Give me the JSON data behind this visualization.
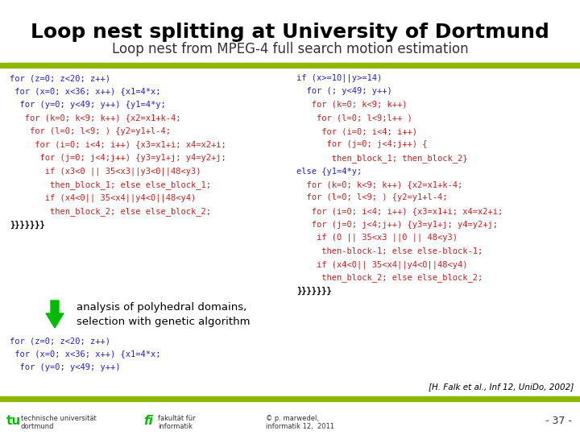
{
  "title": "Loop nest splitting at University of Dortmund",
  "subtitle": "Loop nest from MPEG-4 full search motion estimation",
  "bg_color": "#ffffff",
  "bar_color": "#8db600",
  "title_color": "#000000",
  "subtitle_color": "#333333",
  "blue": "#2222bb",
  "red": "#bb2222",
  "black": "#000000",
  "green": "#00bb00",
  "left_code_lines": [
    {
      "text": "for (z=0; z<20; z++)",
      "color": "#2222bb"
    },
    {
      "text": " for (x=0; x<36; x++) {x1=4*x;",
      "color": "#2222bb"
    },
    {
      "text": "  for (y=0; y<49; y++) {y1=4*y;",
      "color": "#2222bb"
    },
    {
      "text": "   for (k=0; k<9; k++) {x2=x1+k-4;",
      "color": "#bb2222"
    },
    {
      "text": "    for (l=0; l<9; ) {y2=y1+l-4;",
      "color": "#bb2222"
    },
    {
      "text": "     for (i=0; i<4; i++) {x3=x1+i; x4=x2+i;",
      "color": "#bb2222"
    },
    {
      "text": "      for (j=0; j<4;j++) {y3=y1+j; y4=y2+j;",
      "color": "#bb2222"
    },
    {
      "text": "       if (x3<0 || 35<x3||y3<0||48<y3)",
      "color": "#bb2222"
    },
    {
      "text": "        then_block_1; else else_block_1;",
      "color": "#bb2222"
    },
    {
      "text": "       if (x4<0|| 35<x4||y4<0||48<y4)",
      "color": "#bb2222"
    },
    {
      "text": "        then_block_2; else else_block_2;",
      "color": "#bb2222"
    },
    {
      "text": "}}}}}}}",
      "color": "#000000",
      "bold": true
    }
  ],
  "arrow_label1": "analysis of polyhedral domains,",
  "arrow_label2": "selection with genetic algorithm",
  "bottom_left_lines": [
    {
      "text": "for (z=0; z<20; z++)",
      "color": "#2222bb"
    },
    {
      "text": " for (x=0; x<36; x++) {x1=4*x;",
      "color": "#2222bb"
    },
    {
      "text": "  for (y=0; y<49; y++)",
      "color": "#2222bb"
    }
  ],
  "right_code_lines": [
    {
      "text": "if (x>=10||y>=14)",
      "color": "#2222bb"
    },
    {
      "text": "  for (; y<49; y++)",
      "color": "#2222bb"
    },
    {
      "text": "   for (k=0; k<9; k++)",
      "color": "#bb2222"
    },
    {
      "text": "    for (l=0; l<9;l++ )",
      "color": "#bb2222"
    },
    {
      "text": "     for (i=0; i<4; i++)",
      "color": "#bb2222"
    },
    {
      "text": "      for (j=0; j<4;j++) {",
      "color": "#bb2222"
    },
    {
      "text": "       then_block_1; then_block_2}",
      "color": "#bb2222"
    },
    {
      "text": "else {y1=4*y;",
      "color": "#2222bb"
    },
    {
      "text": "  for (k=0; k<9; k++) {x2=x1+k-4;",
      "color": "#bb2222"
    },
    {
      "text": "  for (l=0; l<9; ) {y2=y1+l-4;",
      "color": "#bb2222"
    },
    {
      "text": "   for (i=0; i<4; i++) {x3=x1+i; x4=x2+i;",
      "color": "#bb2222"
    },
    {
      "text": "   for (j=0; j<4;j++) {y3=y1+j; y4=y2+j;",
      "color": "#bb2222"
    },
    {
      "text": "    if (0 || 35<x3 ||0 || 48<y3)",
      "color": "#bb2222"
    },
    {
      "text": "     then-block-1; else else-block-1;",
      "color": "#bb2222"
    },
    {
      "text": "    if (x4<0|| 35<x4||y4<0||48<y4)",
      "color": "#bb2222"
    },
    {
      "text": "     then_block_2; else else_block_2;",
      "color": "#bb2222"
    },
    {
      "text": "}}}}}}}",
      "color": "#000000",
      "bold": true
    }
  ],
  "ref_text": "[H. Falk et al., Inf 12, UniDo, 2002]",
  "footer_tu": "tu",
  "footer_left": "technische universität\ndortmund",
  "footer_fi": "fi",
  "footer_mid": "fakultät für\ninformatik",
  "footer_right": "© p. marwedel,\ninformatik 12,  2011",
  "footer_page": "- 37 -"
}
